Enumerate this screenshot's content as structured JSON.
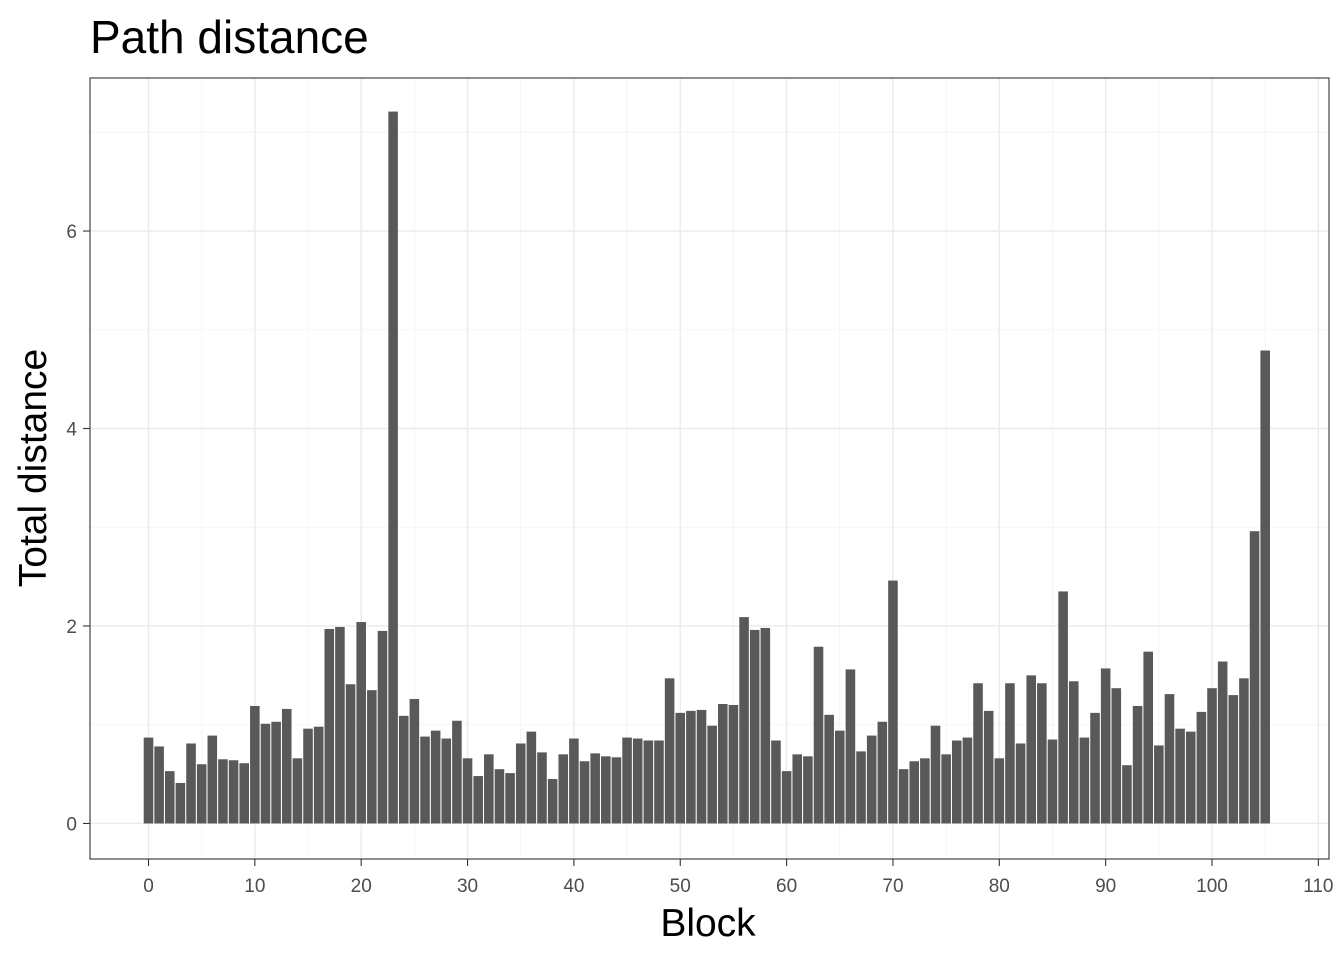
{
  "chart_data": {
    "type": "bar",
    "title": "Path distance",
    "xlabel": "Block",
    "ylabel": "Total distance",
    "xlim": [
      -5.5,
      111
    ],
    "ylim": [
      -0.36,
      7.55
    ],
    "x_ticks": [
      0,
      10,
      20,
      30,
      40,
      50,
      60,
      70,
      80,
      90,
      100,
      110
    ],
    "y_ticks": [
      0,
      2,
      4,
      6
    ],
    "grid": true,
    "legend": "none",
    "bar_color": "#595959",
    "x": [
      0,
      1,
      2,
      3,
      4,
      5,
      6,
      7,
      8,
      9,
      10,
      11,
      12,
      13,
      14,
      15,
      16,
      17,
      18,
      19,
      20,
      21,
      22,
      23,
      24,
      25,
      26,
      27,
      28,
      29,
      30,
      31,
      32,
      33,
      34,
      35,
      36,
      37,
      38,
      39,
      40,
      41,
      42,
      43,
      44,
      45,
      46,
      47,
      48,
      49,
      50,
      51,
      52,
      53,
      54,
      55,
      56,
      57,
      58,
      59,
      60,
      61,
      62,
      63,
      64,
      65,
      66,
      67,
      68,
      69,
      70,
      71,
      72,
      73,
      74,
      75,
      76,
      77,
      78,
      79,
      80,
      81,
      82,
      83,
      84,
      85,
      86,
      87,
      88,
      89,
      90,
      91,
      92,
      93,
      94,
      95,
      96,
      97,
      98,
      99,
      100,
      101,
      102,
      103,
      104,
      105
    ],
    "values": [
      0.87,
      0.78,
      0.53,
      0.41,
      0.81,
      0.6,
      0.89,
      0.65,
      0.64,
      0.61,
      1.19,
      1.01,
      1.03,
      1.16,
      0.66,
      0.96,
      0.98,
      1.97,
      1.99,
      1.41,
      2.04,
      1.35,
      1.95,
      7.21,
      1.09,
      1.26,
      0.88,
      0.94,
      0.86,
      1.04,
      0.66,
      0.48,
      0.7,
      0.55,
      0.51,
      0.81,
      0.93,
      0.72,
      0.45,
      0.7,
      0.86,
      0.63,
      0.71,
      0.68,
      0.67,
      0.87,
      0.86,
      0.84,
      0.84,
      1.47,
      1.12,
      1.14,
      1.15,
      0.99,
      1.21,
      1.2,
      2.09,
      1.96,
      1.98,
      0.84,
      0.53,
      0.7,
      0.68,
      1.79,
      1.1,
      0.94,
      1.56,
      0.73,
      0.89,
      1.03,
      2.46,
      0.55,
      0.63,
      0.66,
      0.99,
      0.7,
      0.84,
      0.87,
      1.42,
      1.14,
      0.66,
      1.42,
      0.81,
      1.5,
      1.42,
      0.85,
      2.35,
      1.44,
      0.87,
      1.12,
      1.57,
      1.37,
      0.59,
      1.19,
      1.74,
      0.79,
      1.31,
      0.96,
      0.93,
      1.13,
      1.37,
      1.64,
      1.3,
      1.47,
      2.96,
      4.79
    ]
  }
}
